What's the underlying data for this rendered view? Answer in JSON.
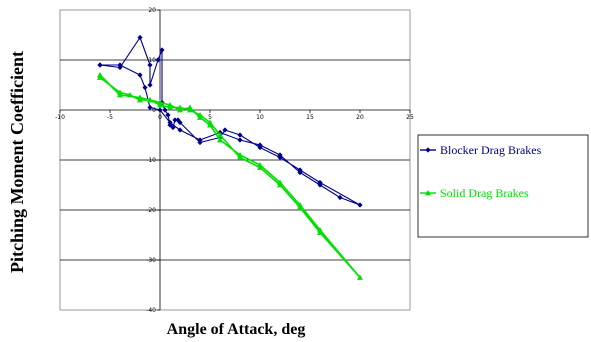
{
  "chart_data": {
    "type": "line",
    "xlabel": "Angle of Attack, deg",
    "ylabel": "Pitching Moment Coefficient",
    "xlim": [
      -10,
      25
    ],
    "ylim": [
      -40,
      20
    ],
    "x_ticks": [
      "-10",
      "-5",
      "0",
      "5",
      "10",
      "15",
      "20",
      "25"
    ],
    "y_ticks": [
      "20",
      "10",
      "0",
      "-10",
      "-20",
      "-30",
      "-40"
    ],
    "grid": "horizontal",
    "legend_position": "right",
    "series": [
      {
        "name": "Blocker Drag Brakes",
        "color": "#00008B",
        "marker": "diamond",
        "points": [
          [
            -6,
            9
          ],
          [
            -4,
            8.5
          ],
          [
            -2,
            14.5
          ],
          [
            -1,
            9
          ],
          [
            -1,
            5
          ],
          [
            -0.2,
            10
          ],
          [
            0.2,
            12
          ],
          [
            0.2,
            1.5
          ],
          [
            0.5,
            0
          ],
          [
            0.8,
            -1
          ],
          [
            1,
            -3
          ],
          [
            1.3,
            -3.5
          ],
          [
            1.5,
            -2
          ],
          [
            1.8,
            -2
          ],
          [
            2,
            -2.5
          ],
          [
            4,
            -6.5
          ],
          [
            6,
            -5.5
          ],
          [
            6.5,
            -4
          ],
          [
            8,
            -5
          ],
          [
            10,
            -7.5
          ],
          [
            12,
            -9.5
          ],
          [
            14,
            -12
          ],
          [
            16,
            -14.5
          ],
          [
            20,
            -19
          ],
          [
            18,
            -17.5
          ],
          [
            16,
            -15
          ],
          [
            14,
            -12.5
          ],
          [
            12,
            -9
          ],
          [
            10,
            -7
          ],
          [
            8,
            -6
          ],
          [
            6,
            -4.5
          ],
          [
            4,
            -6
          ],
          [
            2,
            -4
          ],
          [
            1,
            -2.5
          ],
          [
            0,
            0
          ],
          [
            -1,
            0.5
          ],
          [
            -1.5,
            4.5
          ],
          [
            -2,
            7
          ],
          [
            -4,
            9
          ],
          [
            -6,
            9
          ]
        ]
      },
      {
        "name": "Solid Drag Brakes",
        "color": "#00E000",
        "marker": "triangle",
        "points": [
          [
            -6,
            7
          ],
          [
            -4,
            3
          ],
          [
            -2,
            2.5
          ],
          [
            -1,
            2
          ],
          [
            0,
            1
          ],
          [
            1,
            0.5
          ],
          [
            2,
            0.5
          ],
          [
            3,
            0
          ],
          [
            4,
            -1
          ],
          [
            5,
            -2.5
          ],
          [
            6,
            -5
          ],
          [
            8,
            -9.5
          ],
          [
            10,
            -11.5
          ],
          [
            12,
            -15
          ],
          [
            14,
            -19.5
          ],
          [
            16,
            -24.5
          ],
          [
            20,
            -33.5
          ],
          [
            16,
            -24
          ],
          [
            14,
            -19
          ],
          [
            12,
            -14.5
          ],
          [
            10,
            -11
          ],
          [
            8,
            -9
          ],
          [
            6,
            -6
          ],
          [
            5,
            -3
          ],
          [
            4,
            -1.5
          ],
          [
            3,
            0.5
          ],
          [
            2,
            0
          ],
          [
            1,
            1
          ],
          [
            0,
            1.5
          ],
          [
            -1,
            2
          ],
          [
            -2,
            2
          ],
          [
            -3,
            3
          ],
          [
            -4,
            3.5
          ],
          [
            -6,
            6.5
          ]
        ]
      }
    ]
  }
}
